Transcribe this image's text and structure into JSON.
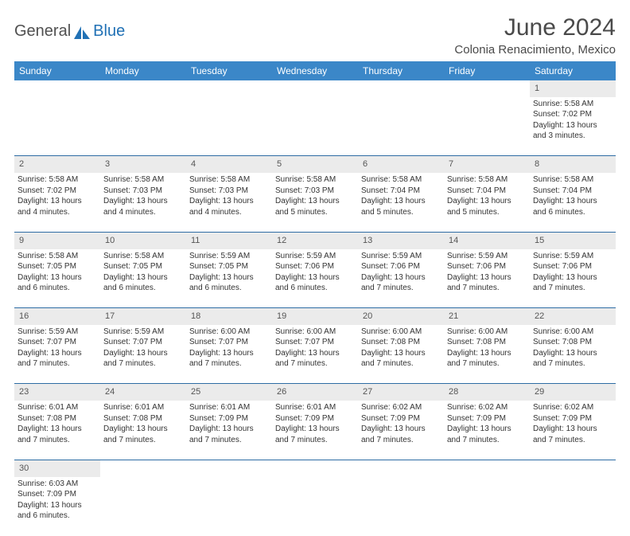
{
  "brand": {
    "part1": "General",
    "part2": "Blue"
  },
  "title": "June 2024",
  "location": "Colonia Renacimiento, Mexico",
  "colors": {
    "header_bg": "#3b87c8",
    "header_text": "#ffffff",
    "daynum_bg": "#ebebeb",
    "cell_border": "#2e6da4",
    "brand_blue": "#2171b5",
    "text": "#4a4a4a"
  },
  "dayHeaders": [
    "Sunday",
    "Monday",
    "Tuesday",
    "Wednesday",
    "Thursday",
    "Friday",
    "Saturday"
  ],
  "weeks": [
    {
      "nums": [
        "",
        "",
        "",
        "",
        "",
        "",
        "1"
      ],
      "cells": [
        null,
        null,
        null,
        null,
        null,
        null,
        {
          "sunrise": "Sunrise: 5:58 AM",
          "sunset": "Sunset: 7:02 PM",
          "day1": "Daylight: 13 hours",
          "day2": "and 3 minutes."
        }
      ]
    },
    {
      "nums": [
        "2",
        "3",
        "4",
        "5",
        "6",
        "7",
        "8"
      ],
      "cells": [
        {
          "sunrise": "Sunrise: 5:58 AM",
          "sunset": "Sunset: 7:02 PM",
          "day1": "Daylight: 13 hours",
          "day2": "and 4 minutes."
        },
        {
          "sunrise": "Sunrise: 5:58 AM",
          "sunset": "Sunset: 7:03 PM",
          "day1": "Daylight: 13 hours",
          "day2": "and 4 minutes."
        },
        {
          "sunrise": "Sunrise: 5:58 AM",
          "sunset": "Sunset: 7:03 PM",
          "day1": "Daylight: 13 hours",
          "day2": "and 4 minutes."
        },
        {
          "sunrise": "Sunrise: 5:58 AM",
          "sunset": "Sunset: 7:03 PM",
          "day1": "Daylight: 13 hours",
          "day2": "and 5 minutes."
        },
        {
          "sunrise": "Sunrise: 5:58 AM",
          "sunset": "Sunset: 7:04 PM",
          "day1": "Daylight: 13 hours",
          "day2": "and 5 minutes."
        },
        {
          "sunrise": "Sunrise: 5:58 AM",
          "sunset": "Sunset: 7:04 PM",
          "day1": "Daylight: 13 hours",
          "day2": "and 5 minutes."
        },
        {
          "sunrise": "Sunrise: 5:58 AM",
          "sunset": "Sunset: 7:04 PM",
          "day1": "Daylight: 13 hours",
          "day2": "and 6 minutes."
        }
      ]
    },
    {
      "nums": [
        "9",
        "10",
        "11",
        "12",
        "13",
        "14",
        "15"
      ],
      "cells": [
        {
          "sunrise": "Sunrise: 5:58 AM",
          "sunset": "Sunset: 7:05 PM",
          "day1": "Daylight: 13 hours",
          "day2": "and 6 minutes."
        },
        {
          "sunrise": "Sunrise: 5:58 AM",
          "sunset": "Sunset: 7:05 PM",
          "day1": "Daylight: 13 hours",
          "day2": "and 6 minutes."
        },
        {
          "sunrise": "Sunrise: 5:59 AM",
          "sunset": "Sunset: 7:05 PM",
          "day1": "Daylight: 13 hours",
          "day2": "and 6 minutes."
        },
        {
          "sunrise": "Sunrise: 5:59 AM",
          "sunset": "Sunset: 7:06 PM",
          "day1": "Daylight: 13 hours",
          "day2": "and 6 minutes."
        },
        {
          "sunrise": "Sunrise: 5:59 AM",
          "sunset": "Sunset: 7:06 PM",
          "day1": "Daylight: 13 hours",
          "day2": "and 7 minutes."
        },
        {
          "sunrise": "Sunrise: 5:59 AM",
          "sunset": "Sunset: 7:06 PM",
          "day1": "Daylight: 13 hours",
          "day2": "and 7 minutes."
        },
        {
          "sunrise": "Sunrise: 5:59 AM",
          "sunset": "Sunset: 7:06 PM",
          "day1": "Daylight: 13 hours",
          "day2": "and 7 minutes."
        }
      ]
    },
    {
      "nums": [
        "16",
        "17",
        "18",
        "19",
        "20",
        "21",
        "22"
      ],
      "cells": [
        {
          "sunrise": "Sunrise: 5:59 AM",
          "sunset": "Sunset: 7:07 PM",
          "day1": "Daylight: 13 hours",
          "day2": "and 7 minutes."
        },
        {
          "sunrise": "Sunrise: 5:59 AM",
          "sunset": "Sunset: 7:07 PM",
          "day1": "Daylight: 13 hours",
          "day2": "and 7 minutes."
        },
        {
          "sunrise": "Sunrise: 6:00 AM",
          "sunset": "Sunset: 7:07 PM",
          "day1": "Daylight: 13 hours",
          "day2": "and 7 minutes."
        },
        {
          "sunrise": "Sunrise: 6:00 AM",
          "sunset": "Sunset: 7:07 PM",
          "day1": "Daylight: 13 hours",
          "day2": "and 7 minutes."
        },
        {
          "sunrise": "Sunrise: 6:00 AM",
          "sunset": "Sunset: 7:08 PM",
          "day1": "Daylight: 13 hours",
          "day2": "and 7 minutes."
        },
        {
          "sunrise": "Sunrise: 6:00 AM",
          "sunset": "Sunset: 7:08 PM",
          "day1": "Daylight: 13 hours",
          "day2": "and 7 minutes."
        },
        {
          "sunrise": "Sunrise: 6:00 AM",
          "sunset": "Sunset: 7:08 PM",
          "day1": "Daylight: 13 hours",
          "day2": "and 7 minutes."
        }
      ]
    },
    {
      "nums": [
        "23",
        "24",
        "25",
        "26",
        "27",
        "28",
        "29"
      ],
      "cells": [
        {
          "sunrise": "Sunrise: 6:01 AM",
          "sunset": "Sunset: 7:08 PM",
          "day1": "Daylight: 13 hours",
          "day2": "and 7 minutes."
        },
        {
          "sunrise": "Sunrise: 6:01 AM",
          "sunset": "Sunset: 7:08 PM",
          "day1": "Daylight: 13 hours",
          "day2": "and 7 minutes."
        },
        {
          "sunrise": "Sunrise: 6:01 AM",
          "sunset": "Sunset: 7:09 PM",
          "day1": "Daylight: 13 hours",
          "day2": "and 7 minutes."
        },
        {
          "sunrise": "Sunrise: 6:01 AM",
          "sunset": "Sunset: 7:09 PM",
          "day1": "Daylight: 13 hours",
          "day2": "and 7 minutes."
        },
        {
          "sunrise": "Sunrise: 6:02 AM",
          "sunset": "Sunset: 7:09 PM",
          "day1": "Daylight: 13 hours",
          "day2": "and 7 minutes."
        },
        {
          "sunrise": "Sunrise: 6:02 AM",
          "sunset": "Sunset: 7:09 PM",
          "day1": "Daylight: 13 hours",
          "day2": "and 7 minutes."
        },
        {
          "sunrise": "Sunrise: 6:02 AM",
          "sunset": "Sunset: 7:09 PM",
          "day1": "Daylight: 13 hours",
          "day2": "and 7 minutes."
        }
      ]
    },
    {
      "nums": [
        "30",
        "",
        "",
        "",
        "",
        "",
        ""
      ],
      "cells": [
        {
          "sunrise": "Sunrise: 6:03 AM",
          "sunset": "Sunset: 7:09 PM",
          "day1": "Daylight: 13 hours",
          "day2": "and 6 minutes."
        },
        null,
        null,
        null,
        null,
        null,
        null
      ]
    }
  ]
}
